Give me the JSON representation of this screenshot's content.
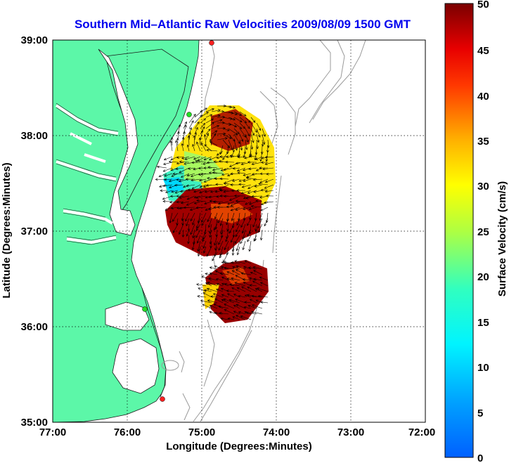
{
  "title": "Southern Mid–Atlantic Raw Velocities 2009/08/09 1500 GMT",
  "xaxis": {
    "label": "Longitude (Degrees:Minutes)",
    "ticks": [
      "77:00",
      "76:00",
      "75:00",
      "74:00",
      "73:00",
      "72:00"
    ]
  },
  "yaxis": {
    "label": "Latitude (Degrees:Minutes)",
    "ticks": [
      "39:00",
      "38:00",
      "37:00",
      "36:00",
      "35:00"
    ]
  },
  "colorbar": {
    "label": "Surface Velocity (cm/s)",
    "ticks": [
      "50",
      "45",
      "40",
      "35",
      "30",
      "25",
      "20",
      "15",
      "10",
      "5",
      "0"
    ],
    "range": [
      0,
      50
    ],
    "colormap": "jet"
  },
  "map": {
    "lon_range": [
      -77,
      -72
    ],
    "lat_range": [
      35,
      39
    ],
    "land_color": "#5cf7a8",
    "water_color": "#ffffff",
    "bathymetry_color": "#9a9a9a",
    "grid": true,
    "site_markers": [
      {
        "color": "#ff2020"
      },
      {
        "color": "#22dd22"
      },
      {
        "color": "#22dd22"
      },
      {
        "color": "#ff2020"
      }
    ]
  },
  "chart_data": {
    "type": "heatmap",
    "title": "Southern Mid–Atlantic Raw Velocities 2009/08/09 1500 GMT",
    "xlabel": "Longitude (Degrees:Minutes)",
    "ylabel": "Latitude (Degrees:Minutes)",
    "xlim": [
      -77,
      -72
    ],
    "ylim": [
      35,
      39
    ],
    "clim": [
      0,
      50
    ],
    "colorbar_label": "Surface Velocity (cm/s)",
    "grid": true,
    "regions": [
      {
        "lon": [
          -75.2,
          -74.6
        ],
        "lat": [
          37.6,
          38.3
        ],
        "speed_cm_s": 42
      },
      {
        "lon": [
          -75.5,
          -75.0
        ],
        "lat": [
          37.2,
          37.8
        ],
        "speed_cm_s": 15
      },
      {
        "lon": [
          -75.1,
          -74.3
        ],
        "lat": [
          37.3,
          37.9
        ],
        "speed_cm_s": 24
      },
      {
        "lon": [
          -75.6,
          -74.5
        ],
        "lat": [
          36.8,
          37.4
        ],
        "speed_cm_s": 47
      },
      {
        "lon": [
          -75.1,
          -74.4
        ],
        "lat": [
          36.2,
          36.7
        ],
        "speed_cm_s": 48
      }
    ]
  }
}
